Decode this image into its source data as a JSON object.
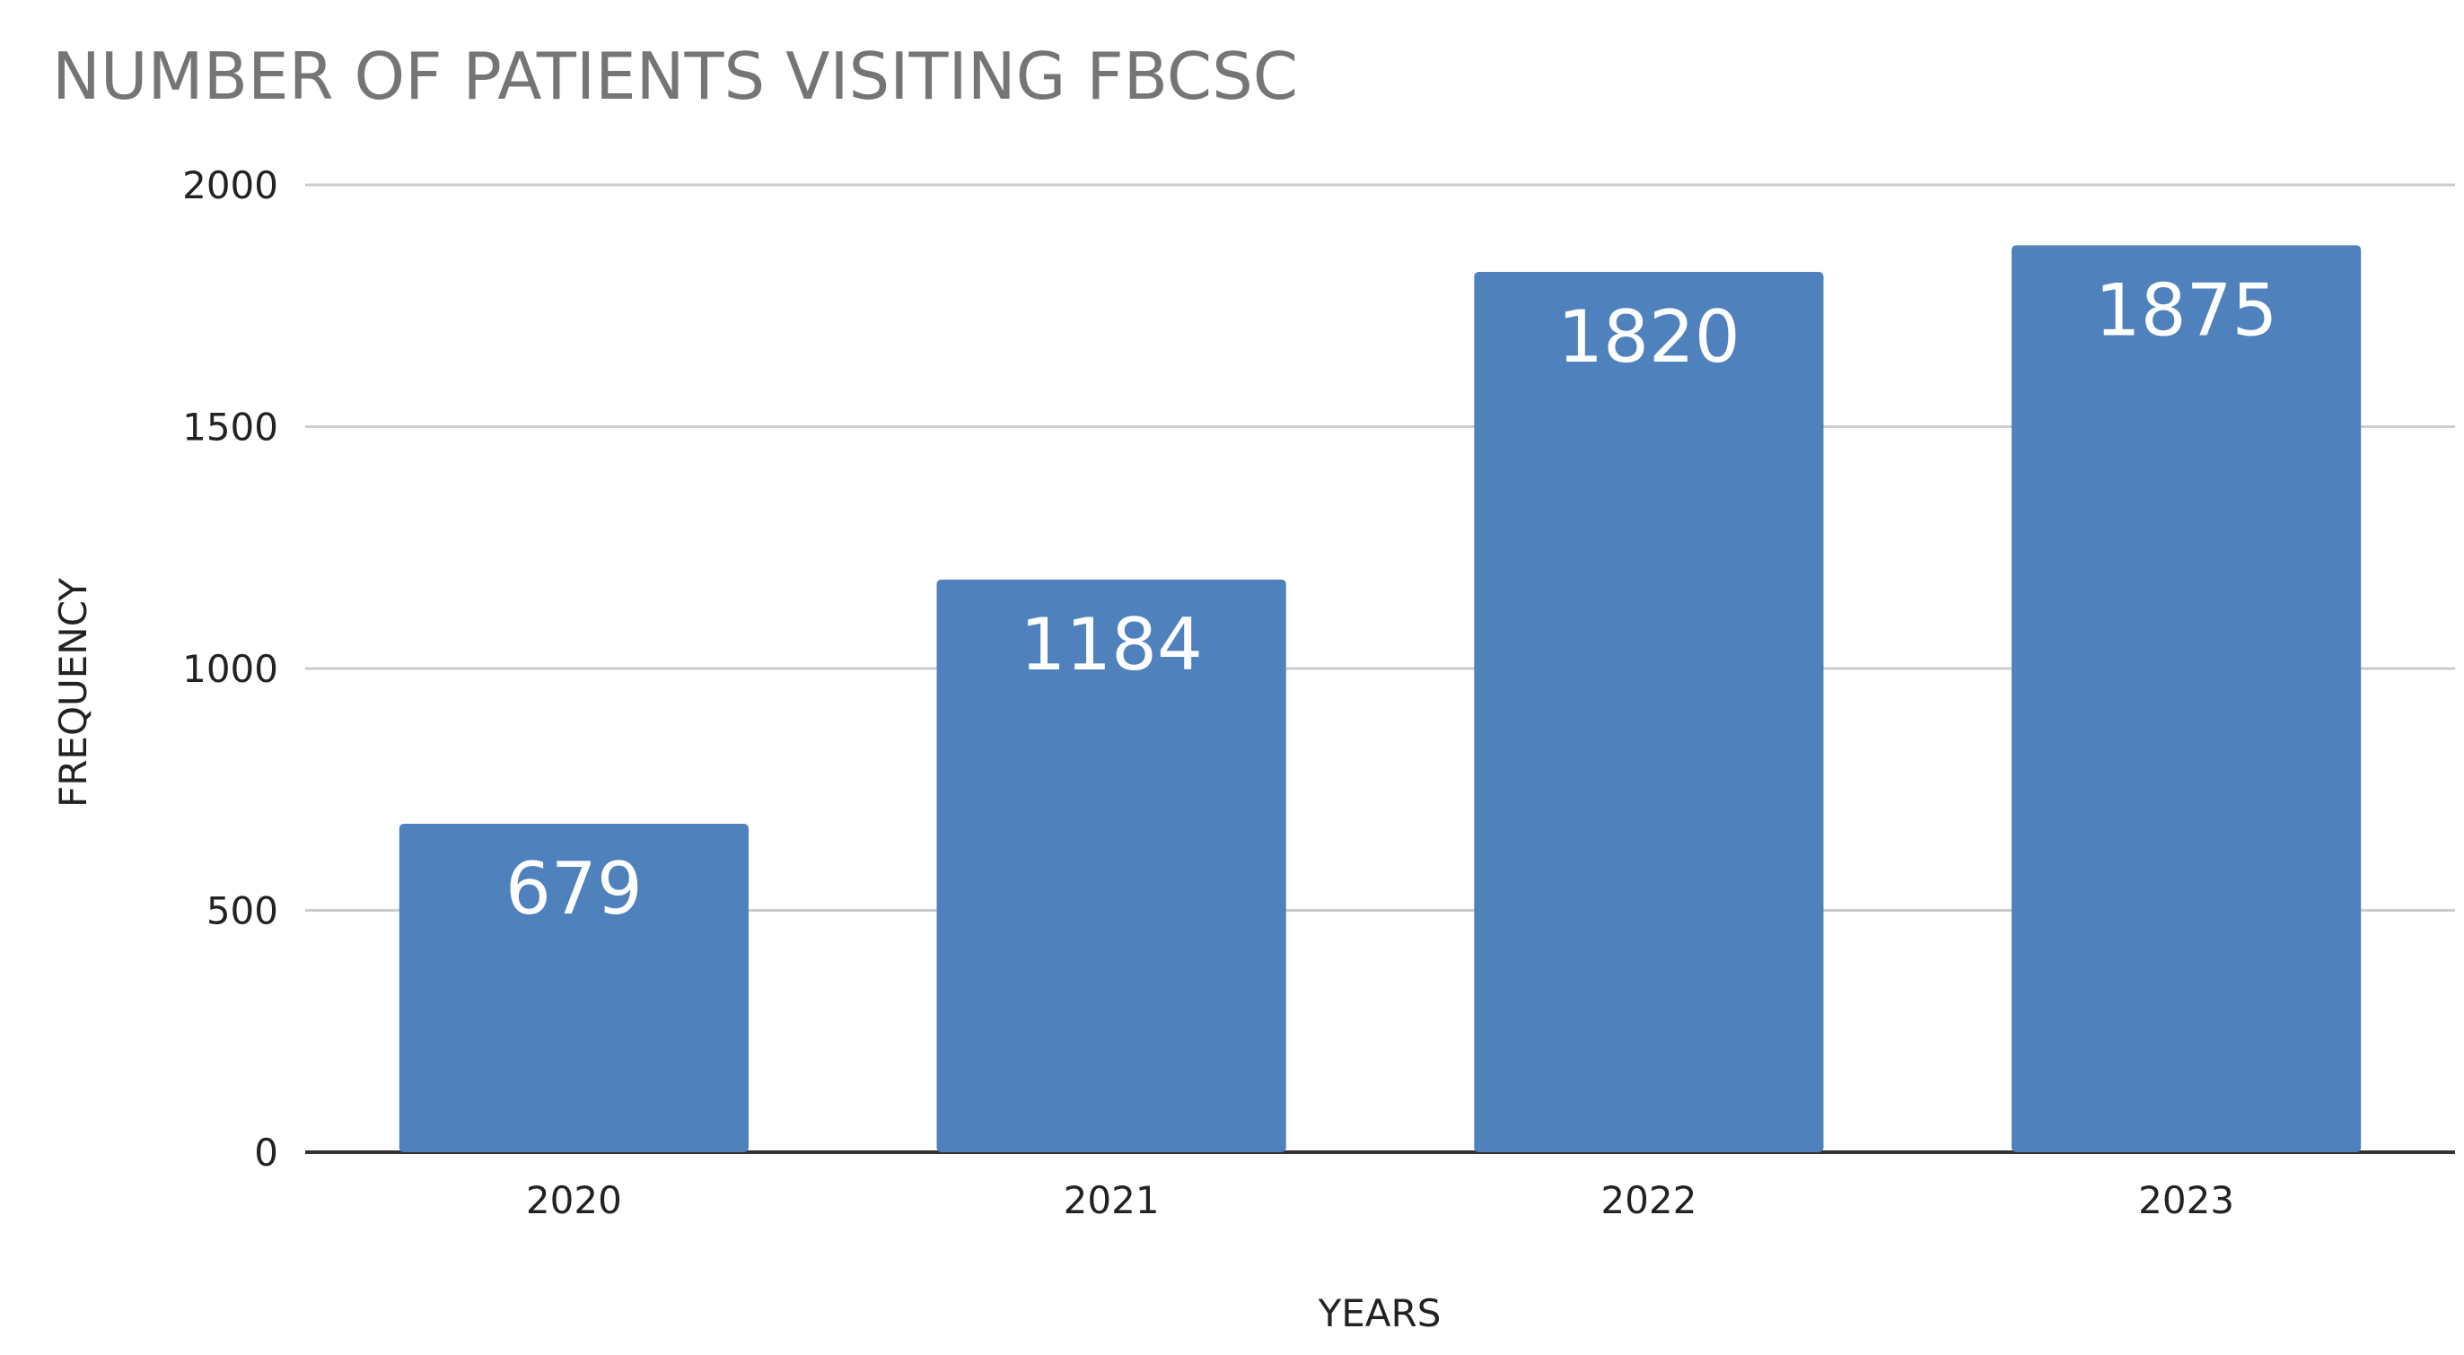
{
  "chart_data": {
    "type": "bar",
    "title": "NUMBER OF PATIENTS VISITING FBCSC",
    "xlabel": "YEARS",
    "ylabel": "FREQUENCY",
    "categories": [
      "2020",
      "2021",
      "2022",
      "2023"
    ],
    "values": [
      679,
      1184,
      1820,
      1875
    ],
    "data_labels": [
      "679",
      "1184",
      "1820",
      "1875"
    ],
    "ylim": [
      0,
      2000
    ],
    "yticks": [
      0,
      500,
      1000,
      1500,
      2000
    ],
    "grid": true,
    "legend": "none",
    "colors": {
      "bar": "#4f81bd",
      "title": "#757575",
      "grid": "#cccccc",
      "axis": "#333333"
    }
  }
}
